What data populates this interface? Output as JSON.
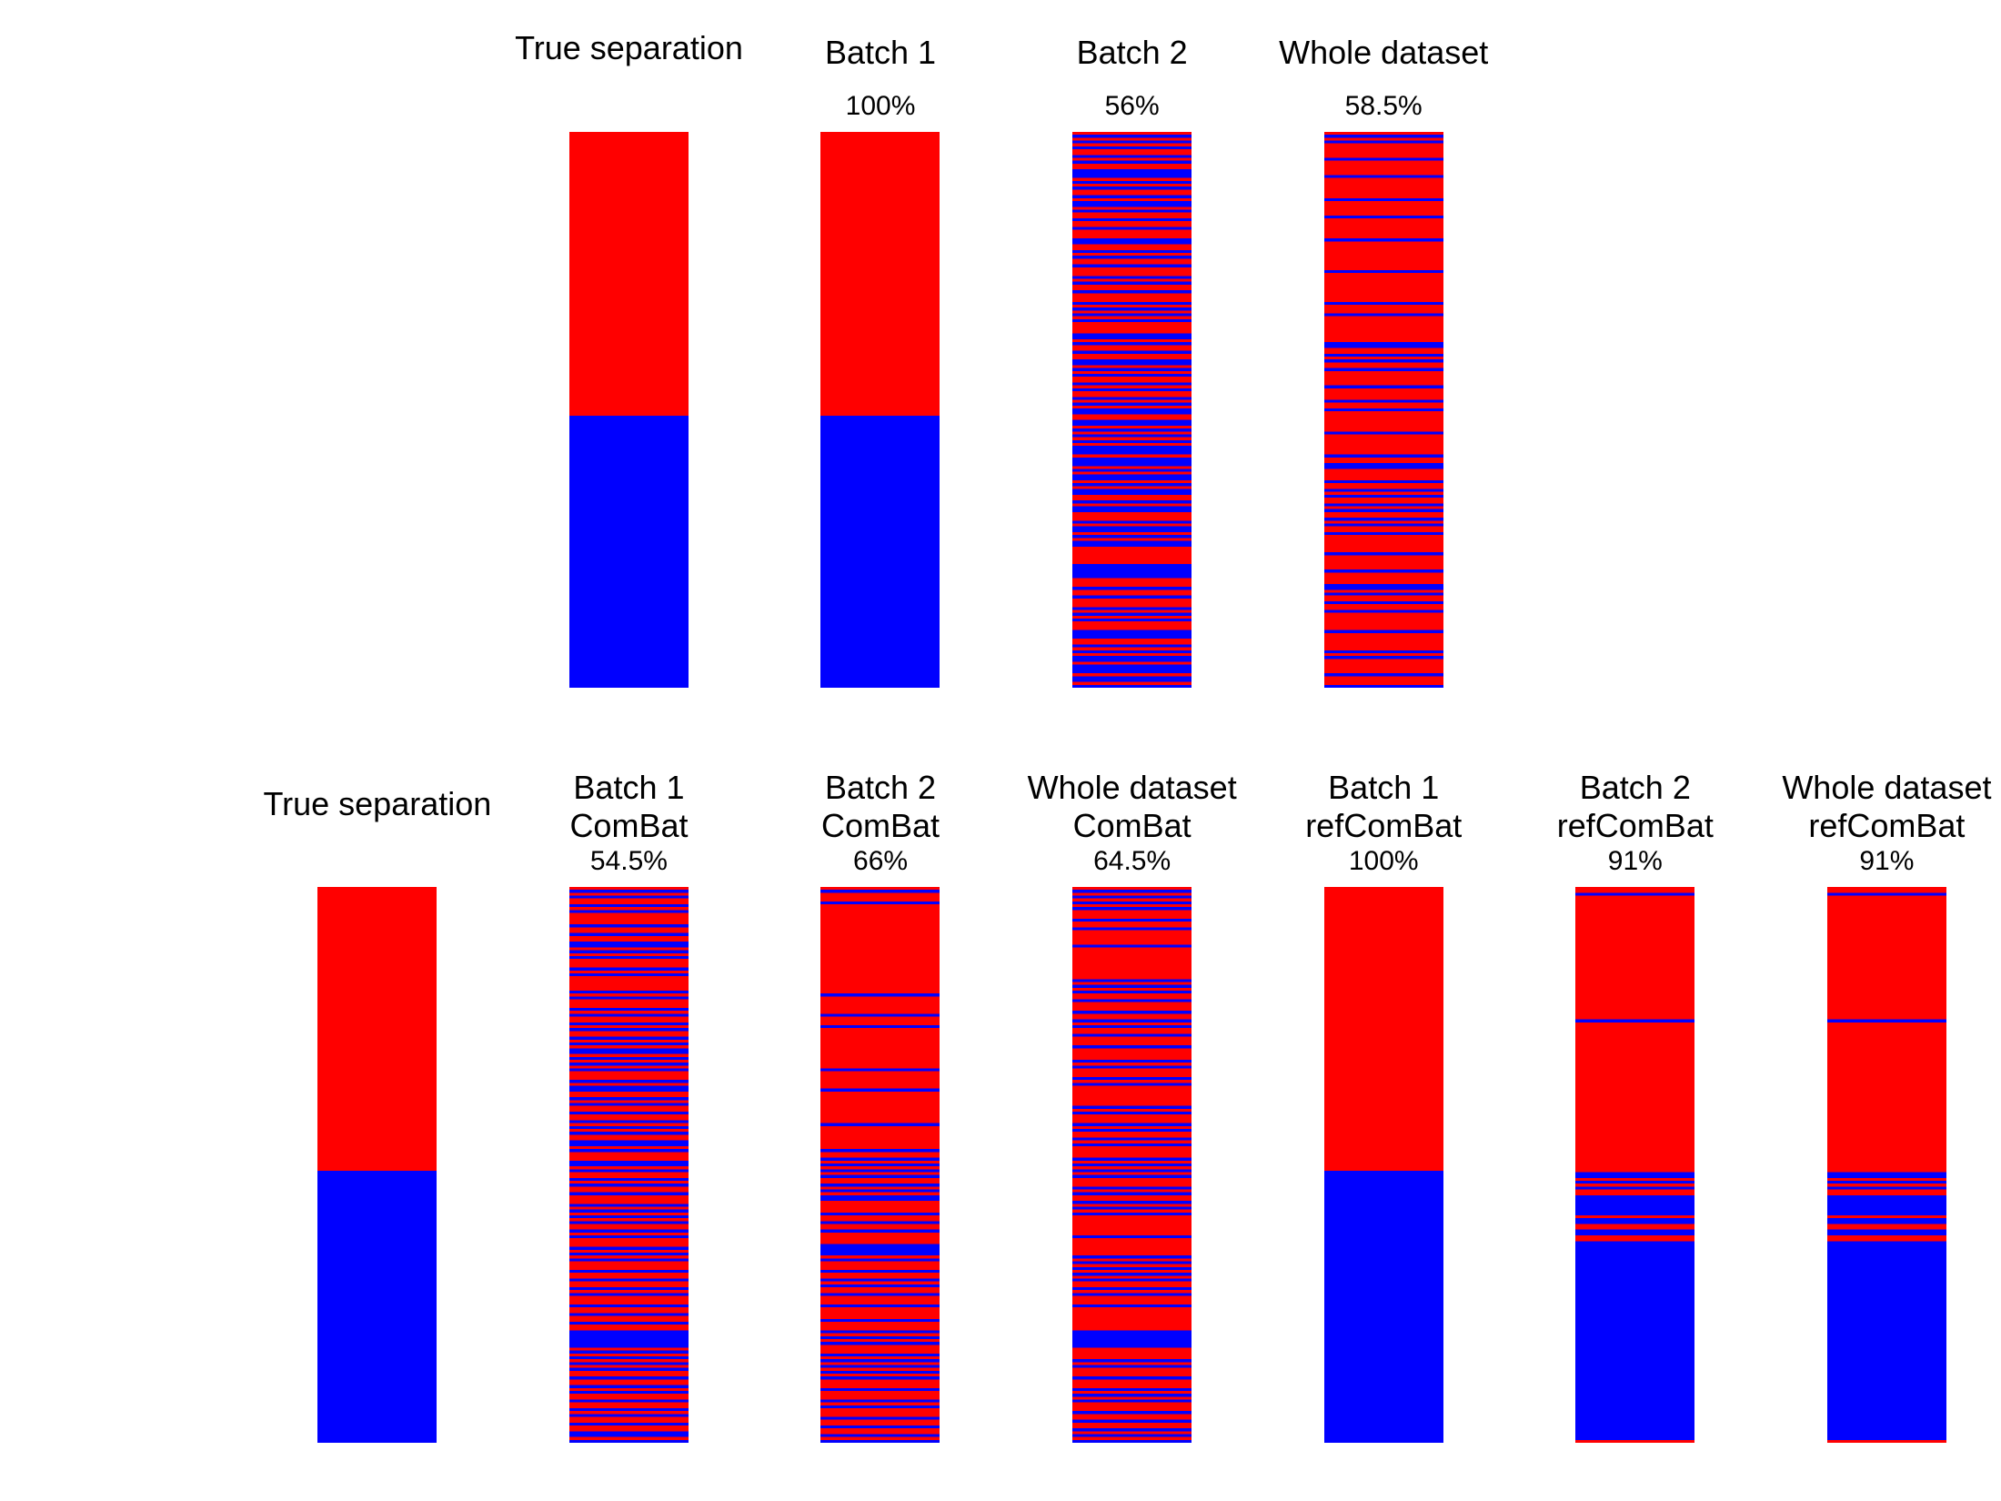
{
  "colors": {
    "red": "#FF0000",
    "blue": "#0000FF",
    "background": "#FFFFFF"
  },
  "chart_data": [
    {
      "type": "heatmap",
      "panel": "top",
      "encoding": "rows top-to-bottom, 1 = red, 0 = blue",
      "columns": [
        {
          "title": [
            "True separation"
          ],
          "accuracy": "",
          "rows": "1111111111111111111111111111111111111111111111111111111111111111111111111111111111111111111111111111000000000000000000000000000000000000000000000000000000000000000000000000000000000000000000000000"
        },
        {
          "title": [
            "Batch 1"
          ],
          "accuracy": "100%",
          "rows": "1111111111111111111111111111111111111111111111111111111111111111111111111111111111111111111111111111000000000000000000000000000000000000000000000000000000000000000000000000000000000000000000000000"
        },
        {
          "title": [
            "Batch 2"
          ],
          "accuracy": "56%",
          "rows": "1010101101011000101011010010110110111001101011011101011011101010101111001011011001010110101101010011001010101000100010100101001101001110100101001111110000011101101110101011100011010100100010010"
        },
        {
          "title": [
            "Whole dataset"
          ],
          "accuracy": "58.5%",
          "rows": "1010111110111110111111101111101111111011111111110111111111101110111111111001101011011111011110110111111101111111011001111011010110101101011011111101111101111001011011011111101111110101111101110"
        }
      ]
    },
    {
      "type": "heatmap",
      "panel": "bottom",
      "encoding": "rows top-to-bottom, 1 = red, 0 = blue",
      "columns": [
        {
          "title": [
            "True separation"
          ],
          "accuracy": "",
          "rows": "1111111111111111111111111111111111111111111111111111111111111111111111111111111111111111111111111111000000000000000000000000000000000000000000000000000000000000000000000000000000000000000000000000"
        },
        {
          "title": [
            "Batch 1",
            "ComBat"
          ],
          "accuracy": "54.5%",
          "rows": "1010110101111011011001010111010111110101110101101011010100101010111010011010110110101011001011100101101011011101010101101011101010111011011010111011011011000000101010101101101011011010110110010"
        },
        {
          "title": [
            "Batch 2",
            "ComBat"
          ],
          "accuracy": "66%",
          "rows": "1011101111111111111111111111111111111011111101110111111111111110111111011111111111011111111011010101011010100111101101101111000010111011010110111011110111010101110101010101110111010111011011010"
        },
        {
          "title": [
            "Whole dataset",
            "ComBat"
          ],
          "accuracy": "64.5%",
          "rows": "1010101011101101111101111111111101010110111011010110111011110101110101111111010111010110101111010101011101011010101111111011111101010101011010111011111111000000111101011101110101011101101101010"
        },
        {
          "title": [
            "Batch 1",
            "refComBat"
          ],
          "accuracy": "100%",
          "rows": "1111111111111111111111111111111111111111111111111111111111111111111111111111111111111111111111111111000000000000000000000000000000000000000000000000000000000000000000000000000000000000000000000000"
        },
        {
          "title": [
            "Batch 2",
            "refComBat"
          ],
          "accuracy": "91%",
          "rows": "1101111111111111111111111111111111111111111111011111111111111111111111111111111111111111111111111110010101100000001001100110000000000000000000000000000000000000000000000000000000000000000000001"
        },
        {
          "title": [
            "Whole dataset",
            "refComBat"
          ],
          "accuracy": "91%",
          "rows": "1101111111111111111111111111111111111111111111011111111111111111111111111111111111111111111111111110010101100000001001100110000000000000000000000000000000000000000000000000000000000000000000001"
        }
      ]
    }
  ]
}
